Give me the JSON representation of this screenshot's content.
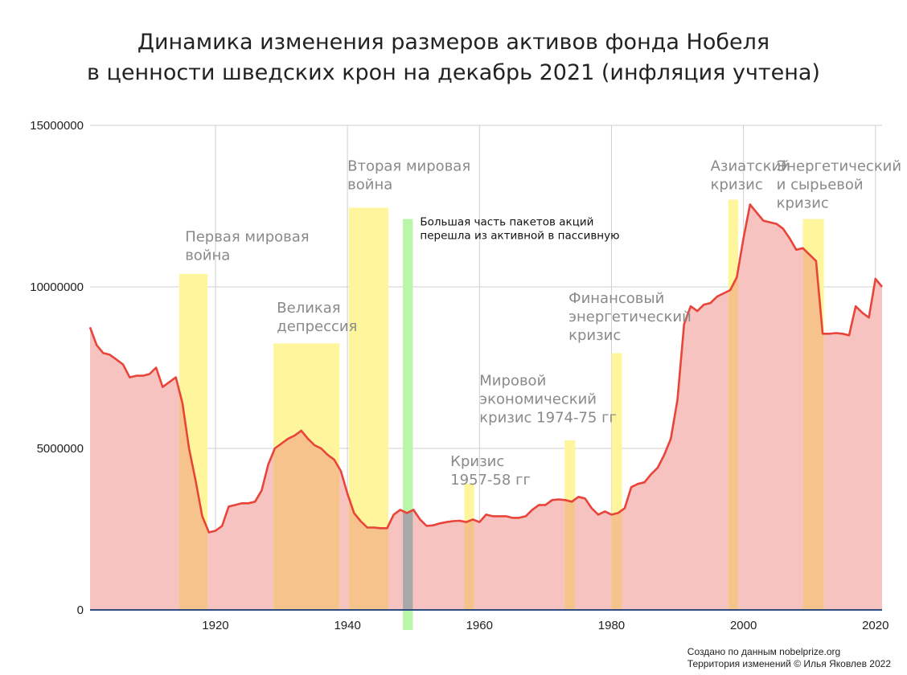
{
  "title_lines": [
    "Динамика изменения размеров активов фонда Нобеля",
    "в ценности шведских крон на декабрь 2021 (инфляция учтена)"
  ],
  "credits": [
    "Создано по данным nobelprize.org",
    "Территория изменений © Илья Яковлев 2022"
  ],
  "colors": {
    "line": "#e8443a",
    "area": "#f6c3c0",
    "highlight": "#fff59d",
    "green_band": "#b9f6a9",
    "overlap": "#f6c38c",
    "grid": "#cfcfcf",
    "baseline": "#2d4d80"
  },
  "chart_data": {
    "type": "area",
    "xlim": [
      1901,
      2021
    ],
    "ylim": [
      0,
      15000000
    ],
    "y_ticks": [
      0,
      5000000,
      10000000,
      15000000
    ],
    "y_tick_labels": [
      "0",
      "5000000",
      "10000000",
      "15000000"
    ],
    "x_ticks": [
      1920,
      1940,
      1960,
      1980,
      2000,
      2020
    ],
    "x_tick_labels": [
      "1920",
      "1940",
      "1960",
      "1980",
      "2000",
      "2020"
    ],
    "grid": true,
    "series": [
      {
        "x": [
          1901,
          1902,
          1903,
          1904,
          1905,
          1906,
          1907,
          1908,
          1909,
          1910,
          1911,
          1912,
          1913,
          1914,
          1915,
          1916,
          1917,
          1918,
          1919,
          1920,
          1921,
          1922,
          1923,
          1924,
          1925,
          1926,
          1927,
          1928,
          1929,
          1930,
          1931,
          1932,
          1933,
          1934,
          1935,
          1936,
          1937,
          1938,
          1939,
          1940,
          1941,
          1942,
          1943,
          1944,
          1945,
          1946,
          1947,
          1948,
          1949,
          1950,
          1951,
          1952,
          1953,
          1954,
          1955,
          1956,
          1957,
          1958,
          1959,
          1960,
          1961,
          1962,
          1963,
          1964,
          1965,
          1966,
          1967,
          1968,
          1969,
          1970,
          1971,
          1972,
          1973,
          1974,
          1975,
          1976,
          1977,
          1978,
          1979,
          1980,
          1981,
          1982,
          1983,
          1984,
          1985,
          1986,
          1987,
          1988,
          1989,
          1990,
          1991,
          1992,
          1993,
          1994,
          1995,
          1996,
          1997,
          1998,
          1999,
          2000,
          2001,
          2002,
          2003,
          2004,
          2005,
          2006,
          2007,
          2008,
          2009,
          2010,
          2011,
          2012,
          2013,
          2014,
          2015,
          2016,
          2017,
          2018,
          2019,
          2020,
          2021
        ],
        "values": [
          8750000,
          8200000,
          7950000,
          7900000,
          7750000,
          7600000,
          7200000,
          7250000,
          7250000,
          7300000,
          7500000,
          6900000,
          7050000,
          7200000,
          6400000,
          5000000,
          4000000,
          2900000,
          2400000,
          2450000,
          2600000,
          3200000,
          3250000,
          3300000,
          3300000,
          3350000,
          3700000,
          4500000,
          5000000,
          5150000,
          5300000,
          5400000,
          5550000,
          5300000,
          5100000,
          5000000,
          4800000,
          4650000,
          4300000,
          3600000,
          3000000,
          2750000,
          2550000,
          2550000,
          2530000,
          2530000,
          2950000,
          3100000,
          3000000,
          3100000,
          2800000,
          2600000,
          2620000,
          2680000,
          2720000,
          2750000,
          2760000,
          2720000,
          2800000,
          2720000,
          2950000,
          2900000,
          2900000,
          2900000,
          2850000,
          2850000,
          2900000,
          3100000,
          3250000,
          3250000,
          3400000,
          3420000,
          3400000,
          3350000,
          3500000,
          3450000,
          3150000,
          2950000,
          3050000,
          2950000,
          3000000,
          3150000,
          3800000,
          3900000,
          3950000,
          4200000,
          4400000,
          4800000,
          5300000,
          6500000,
          8850000,
          9400000,
          9250000,
          9450000,
          9500000,
          9700000,
          9800000,
          9900000,
          10300000,
          11500000,
          12550000,
          12300000,
          12050000,
          12000000,
          11950000,
          11800000,
          11500000,
          11150000,
          11200000,
          11000000,
          10800000,
          8550000,
          8550000,
          8570000,
          8550000,
          8500000,
          9400000,
          9200000,
          9050000,
          10250000,
          10000000
        ]
      }
    ],
    "events": [
      {
        "start": 1914.5,
        "end": 1918.8,
        "top": 10400000,
        "kind": "highlight"
      },
      {
        "start": 1928.8,
        "end": 1938.8,
        "top": 8250000,
        "kind": "highlight"
      },
      {
        "start": 1940.2,
        "end": 1946.2,
        "top": 12450000,
        "kind": "highlight"
      },
      {
        "start": 1948.4,
        "end": 1949.9,
        "top": 12100000,
        "kind": "green"
      },
      {
        "start": 1957.7,
        "end": 1959.2,
        "top": 3900000,
        "kind": "highlight"
      },
      {
        "start": 1972.9,
        "end": 1974.5,
        "top": 5250000,
        "kind": "highlight"
      },
      {
        "start": 1980.0,
        "end": 1981.6,
        "top": 7950000,
        "kind": "highlight"
      },
      {
        "start": 1997.7,
        "end": 1999.2,
        "top": 12700000,
        "kind": "highlight"
      },
      {
        "start": 2009.0,
        "end": 2012.2,
        "top": 12100000,
        "kind": "highlight"
      }
    ],
    "annotations": [
      {
        "lines": [
          "Первая мировая",
          "война"
        ],
        "at_x": 1915.4,
        "at_y": 11400000,
        "style": "gray"
      },
      {
        "lines": [
          "Великая",
          "депрессия"
        ],
        "at_x": 1929.3,
        "at_y": 9200000,
        "style": "gray"
      },
      {
        "lines": [
          "Вторая мировая",
          "война"
        ],
        "at_x": 1940.0,
        "at_y": 13600000,
        "style": "gray"
      },
      {
        "lines": [
          "Большая часть пакетов акций",
          "перешла из активной в пассивную"
        ],
        "at_x": 1951.0,
        "at_y": 11900000,
        "style": "black"
      },
      {
        "lines": [
          "Кризис",
          "1957-58 гг"
        ],
        "at_x": 1955.6,
        "at_y": 4450000,
        "style": "gray"
      },
      {
        "lines": [
          "Мировой",
          "экономический",
          "кризис 1974-75 гг"
        ],
        "at_x": 1960.0,
        "at_y": 6950000,
        "style": "gray"
      },
      {
        "lines": [
          "Финансовый",
          "энергетический",
          "кризис"
        ],
        "at_x": 1973.5,
        "at_y": 9500000,
        "style": "gray"
      },
      {
        "lines": [
          "Азиатский",
          "кризис"
        ],
        "at_x": 1995.0,
        "at_y": 13600000,
        "style": "gray"
      },
      {
        "lines": [
          "Энергетический",
          "и сырьевой",
          "кризис"
        ],
        "at_x": 2005.0,
        "at_y": 13600000,
        "style": "gray"
      }
    ]
  }
}
